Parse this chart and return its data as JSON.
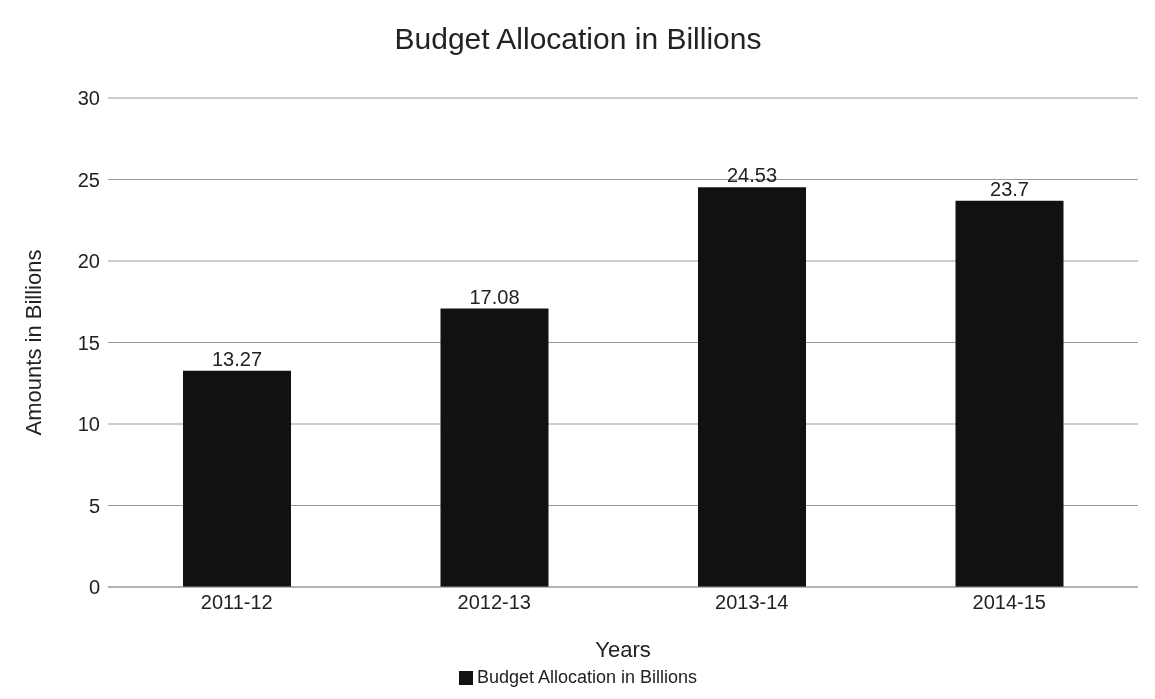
{
  "chart_data": {
    "type": "bar",
    "title": "Budget Allocation in Billions",
    "xlabel": "Years",
    "ylabel": "Amounts in Billions",
    "categories": [
      "2011-12",
      "2012-13",
      "2013-14",
      "2014-15"
    ],
    "series": [
      {
        "name": "Budget Allocation in Billions",
        "color": "#111111",
        "values": [
          13.27,
          17.08,
          24.53,
          23.7
        ]
      }
    ],
    "ylim": [
      0,
      30
    ],
    "yticks": [
      0,
      5,
      10,
      15,
      20,
      25,
      30
    ],
    "grid": "y",
    "legend": "bottom",
    "data_labels": true
  }
}
